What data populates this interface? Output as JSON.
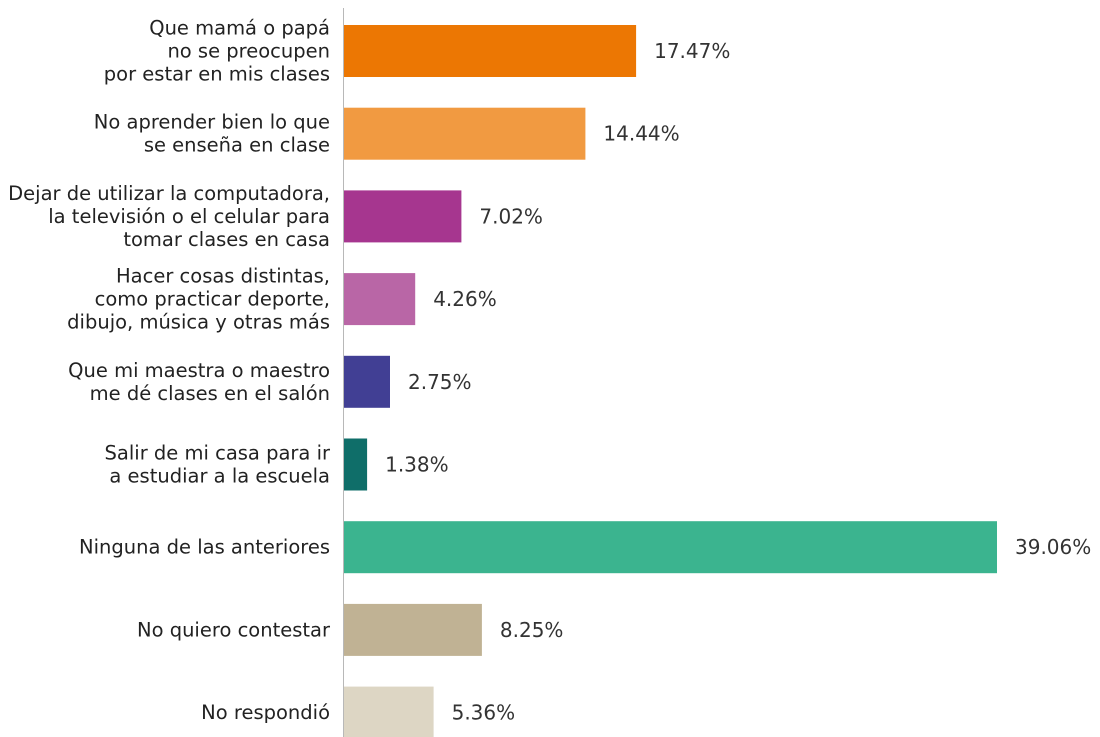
{
  "chart_data": {
    "type": "bar",
    "orientation": "horizontal",
    "title": "",
    "xlabel": "",
    "ylabel": "",
    "xlim": [
      0,
      39.06
    ],
    "grid": false,
    "legend": "none",
    "value_suffix": "%",
    "categories": [
      [
        "Que mamá o papá",
        "no se preocupen",
        "por estar en mis clases"
      ],
      [
        "No aprender bien lo que",
        "se enseña en clase"
      ],
      [
        "Dejar de utilizar la computadora,",
        "la televisión o el celular para",
        "tomar clases en casa"
      ],
      [
        "Hacer cosas distintas,",
        "como practicar deporte,",
        "dibujo, música y otras más"
      ],
      [
        "Que mi maestra o maestro",
        "me dé clases en el salón"
      ],
      [
        "Salir de mi casa para ir",
        "a estudiar a la escuela"
      ],
      [
        "Ninguna de las anteriores"
      ],
      [
        "No quiero contestar"
      ],
      [
        "No respondió"
      ]
    ],
    "values": [
      17.47,
      14.44,
      7.02,
      4.26,
      2.75,
      1.38,
      39.06,
      8.25,
      5.36
    ],
    "value_labels": [
      "17.47%",
      "14.44%",
      "7.02%",
      "4.26%",
      "2.75%",
      "1.38%",
      "39.06%",
      "8.25%",
      "5.36%"
    ],
    "colors": [
      "#ec7703",
      "#f19a41",
      "#a6368f",
      "#b966a6",
      "#413f94",
      "#0f6e69",
      "#3bb48f",
      "#c0b294",
      "#ddd6c4"
    ]
  }
}
